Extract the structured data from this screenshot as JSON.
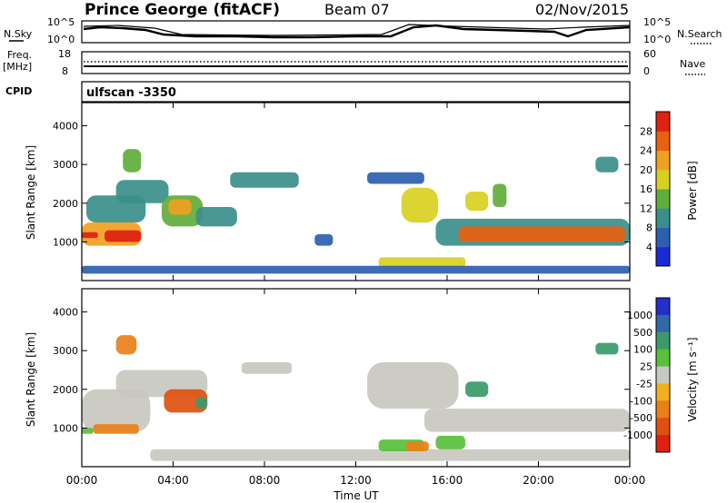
{
  "header": {
    "station": "Prince George (fitACF)",
    "beam": "Beam 07",
    "date": "02/Nov/2015"
  },
  "noise_panel": {
    "left_label": "N.Sky",
    "right_label": "N.Search",
    "left_ticks": [
      "10^5",
      "10^0"
    ],
    "right_ticks": [
      "10^5",
      "10^0"
    ]
  },
  "freq_panel": {
    "left_label": "Freq.",
    "left_unit": "[MHz]",
    "right_label": "Nave",
    "left_ticks": [
      "18",
      "8"
    ],
    "right_ticks": [
      "60",
      "0"
    ]
  },
  "cpid_panel": {
    "label": "CPID",
    "text": "ulfscan -3350"
  },
  "chart_data": [
    {
      "type": "heatmap",
      "quantity": "Power",
      "ylabel": "Slant Range [km]",
      "xlabel": "Time UT",
      "ylim": [
        0,
        4600
      ],
      "yticks": [
        "1000",
        "2000",
        "3000",
        "4000"
      ],
      "xticks": [
        "00:00",
        "04:00",
        "08:00",
        "12:00",
        "16:00",
        "20:00",
        "00:00"
      ],
      "colorbar_label": "Power [dB]",
      "colorbar_ticks": [
        "4",
        "8",
        "12",
        "16",
        "20",
        "24",
        "28"
      ],
      "colorbar_colors": [
        "#1a2bd6",
        "#2d5fb0",
        "#3a8f8a",
        "#5fae3a",
        "#d8d020",
        "#f0a020",
        "#e86010",
        "#e02010"
      ],
      "regions": [
        {
          "t0": 0.0,
          "t1": 2.6,
          "r0": 900,
          "r1": 1500,
          "level": 20
        },
        {
          "t0": 1.0,
          "t1": 2.6,
          "r0": 1000,
          "r1": 1300,
          "level": 28
        },
        {
          "t0": 0.0,
          "t1": 0.7,
          "r0": 1100,
          "r1": 1250,
          "level": 28
        },
        {
          "t0": 0.2,
          "t1": 2.8,
          "r0": 1500,
          "r1": 2200,
          "level": 10
        },
        {
          "t0": 1.5,
          "t1": 3.8,
          "r0": 2000,
          "r1": 2600,
          "level": 8
        },
        {
          "t0": 3.5,
          "t1": 5.3,
          "r0": 1400,
          "r1": 2200,
          "level": 14
        },
        {
          "t0": 3.8,
          "t1": 4.8,
          "r0": 1700,
          "r1": 2100,
          "level": 20
        },
        {
          "t0": 5.0,
          "t1": 6.8,
          "r0": 1400,
          "r1": 1900,
          "level": 10
        },
        {
          "t0": 6.5,
          "t1": 9.5,
          "r0": 2400,
          "r1": 2800,
          "level": 8
        },
        {
          "t0": 1.8,
          "t1": 2.6,
          "r0": 2800,
          "r1": 3400,
          "level": 12
        },
        {
          "t0": 10.2,
          "t1": 11.0,
          "r0": 900,
          "r1": 1200,
          "level": 6
        },
        {
          "t0": 12.5,
          "t1": 15.0,
          "r0": 2500,
          "r1": 2800,
          "level": 6
        },
        {
          "t0": 14.0,
          "t1": 15.6,
          "r0": 1500,
          "r1": 2400,
          "level": 18
        },
        {
          "t0": 15.5,
          "t1": 24.0,
          "r0": 900,
          "r1": 1600,
          "level": 10
        },
        {
          "t0": 16.5,
          "t1": 23.8,
          "r0": 1000,
          "r1": 1400,
          "level": 26
        },
        {
          "t0": 13.0,
          "t1": 16.8,
          "r0": 350,
          "r1": 600,
          "level": 18
        },
        {
          "t0": 0.0,
          "t1": 24.0,
          "r0": 180,
          "r1": 380,
          "level": 6
        },
        {
          "t0": 16.8,
          "t1": 17.8,
          "r0": 1800,
          "r1": 2300,
          "level": 16
        },
        {
          "t0": 18.0,
          "t1": 18.6,
          "r0": 1900,
          "r1": 2500,
          "level": 12
        },
        {
          "t0": 22.5,
          "t1": 23.5,
          "r0": 2800,
          "r1": 3200,
          "level": 8
        }
      ]
    },
    {
      "type": "heatmap",
      "quantity": "Velocity",
      "ylabel": "Slant Range [km]",
      "xlabel": "Time UT",
      "ylim": [
        0,
        4600
      ],
      "yticks": [
        "1000",
        "2000",
        "3000",
        "4000"
      ],
      "xticks": [
        "00:00",
        "04:00",
        "08:00",
        "12:00",
        "16:00",
        "20:00",
        "00:00"
      ],
      "colorbar_label": "Velocity [m s⁻¹]",
      "colorbar_ticks": [
        "1000",
        "500",
        "100",
        "25",
        "-25",
        "-100",
        "-500",
        "-1000"
      ],
      "colorbar_colors": [
        "#2030c8",
        "#3068a8",
        "#3a9a6a",
        "#58c03a",
        "#c8c8c0",
        "#f0b020",
        "#e88018",
        "#e05010",
        "#e02010"
      ],
      "regions": [
        {
          "t0": 0.0,
          "t1": 3.0,
          "r0": 900,
          "r1": 2000,
          "level": 0
        },
        {
          "t0": 1.5,
          "t1": 5.5,
          "r0": 1800,
          "r1": 2500,
          "level": 0
        },
        {
          "t0": 0.5,
          "t1": 2.5,
          "r0": 850,
          "r1": 1100,
          "level": -150
        },
        {
          "t0": 3.6,
          "t1": 5.5,
          "r0": 1400,
          "r1": 2000,
          "level": -600
        },
        {
          "t0": 5.0,
          "t1": 5.5,
          "r0": 1500,
          "r1": 1800,
          "level": 300
        },
        {
          "t0": 1.5,
          "t1": 2.4,
          "r0": 2900,
          "r1": 3400,
          "level": -200
        },
        {
          "t0": 7.0,
          "t1": 9.2,
          "r0": 2400,
          "r1": 2700,
          "level": 0
        },
        {
          "t0": 12.5,
          "t1": 16.5,
          "r0": 1500,
          "r1": 2700,
          "level": 0
        },
        {
          "t0": 15.0,
          "t1": 24.0,
          "r0": 900,
          "r1": 1500,
          "level": 0
        },
        {
          "t0": 3.0,
          "t1": 24.0,
          "r0": 150,
          "r1": 450,
          "level": 0
        },
        {
          "t0": 13.0,
          "t1": 15.0,
          "r0": 400,
          "r1": 700,
          "level": 60
        },
        {
          "t0": 14.2,
          "t1": 15.2,
          "r0": 400,
          "r1": 650,
          "level": -150
        },
        {
          "t0": 15.5,
          "t1": 16.8,
          "r0": 450,
          "r1": 800,
          "level": 60
        },
        {
          "t0": 16.8,
          "t1": 17.8,
          "r0": 1800,
          "r1": 2200,
          "level": 300
        },
        {
          "t0": 0.0,
          "t1": 0.5,
          "r0": 850,
          "r1": 1000,
          "level": 60
        },
        {
          "t0": 22.5,
          "t1": 23.5,
          "r0": 2900,
          "r1": 3200,
          "level": 100
        }
      ]
    }
  ]
}
